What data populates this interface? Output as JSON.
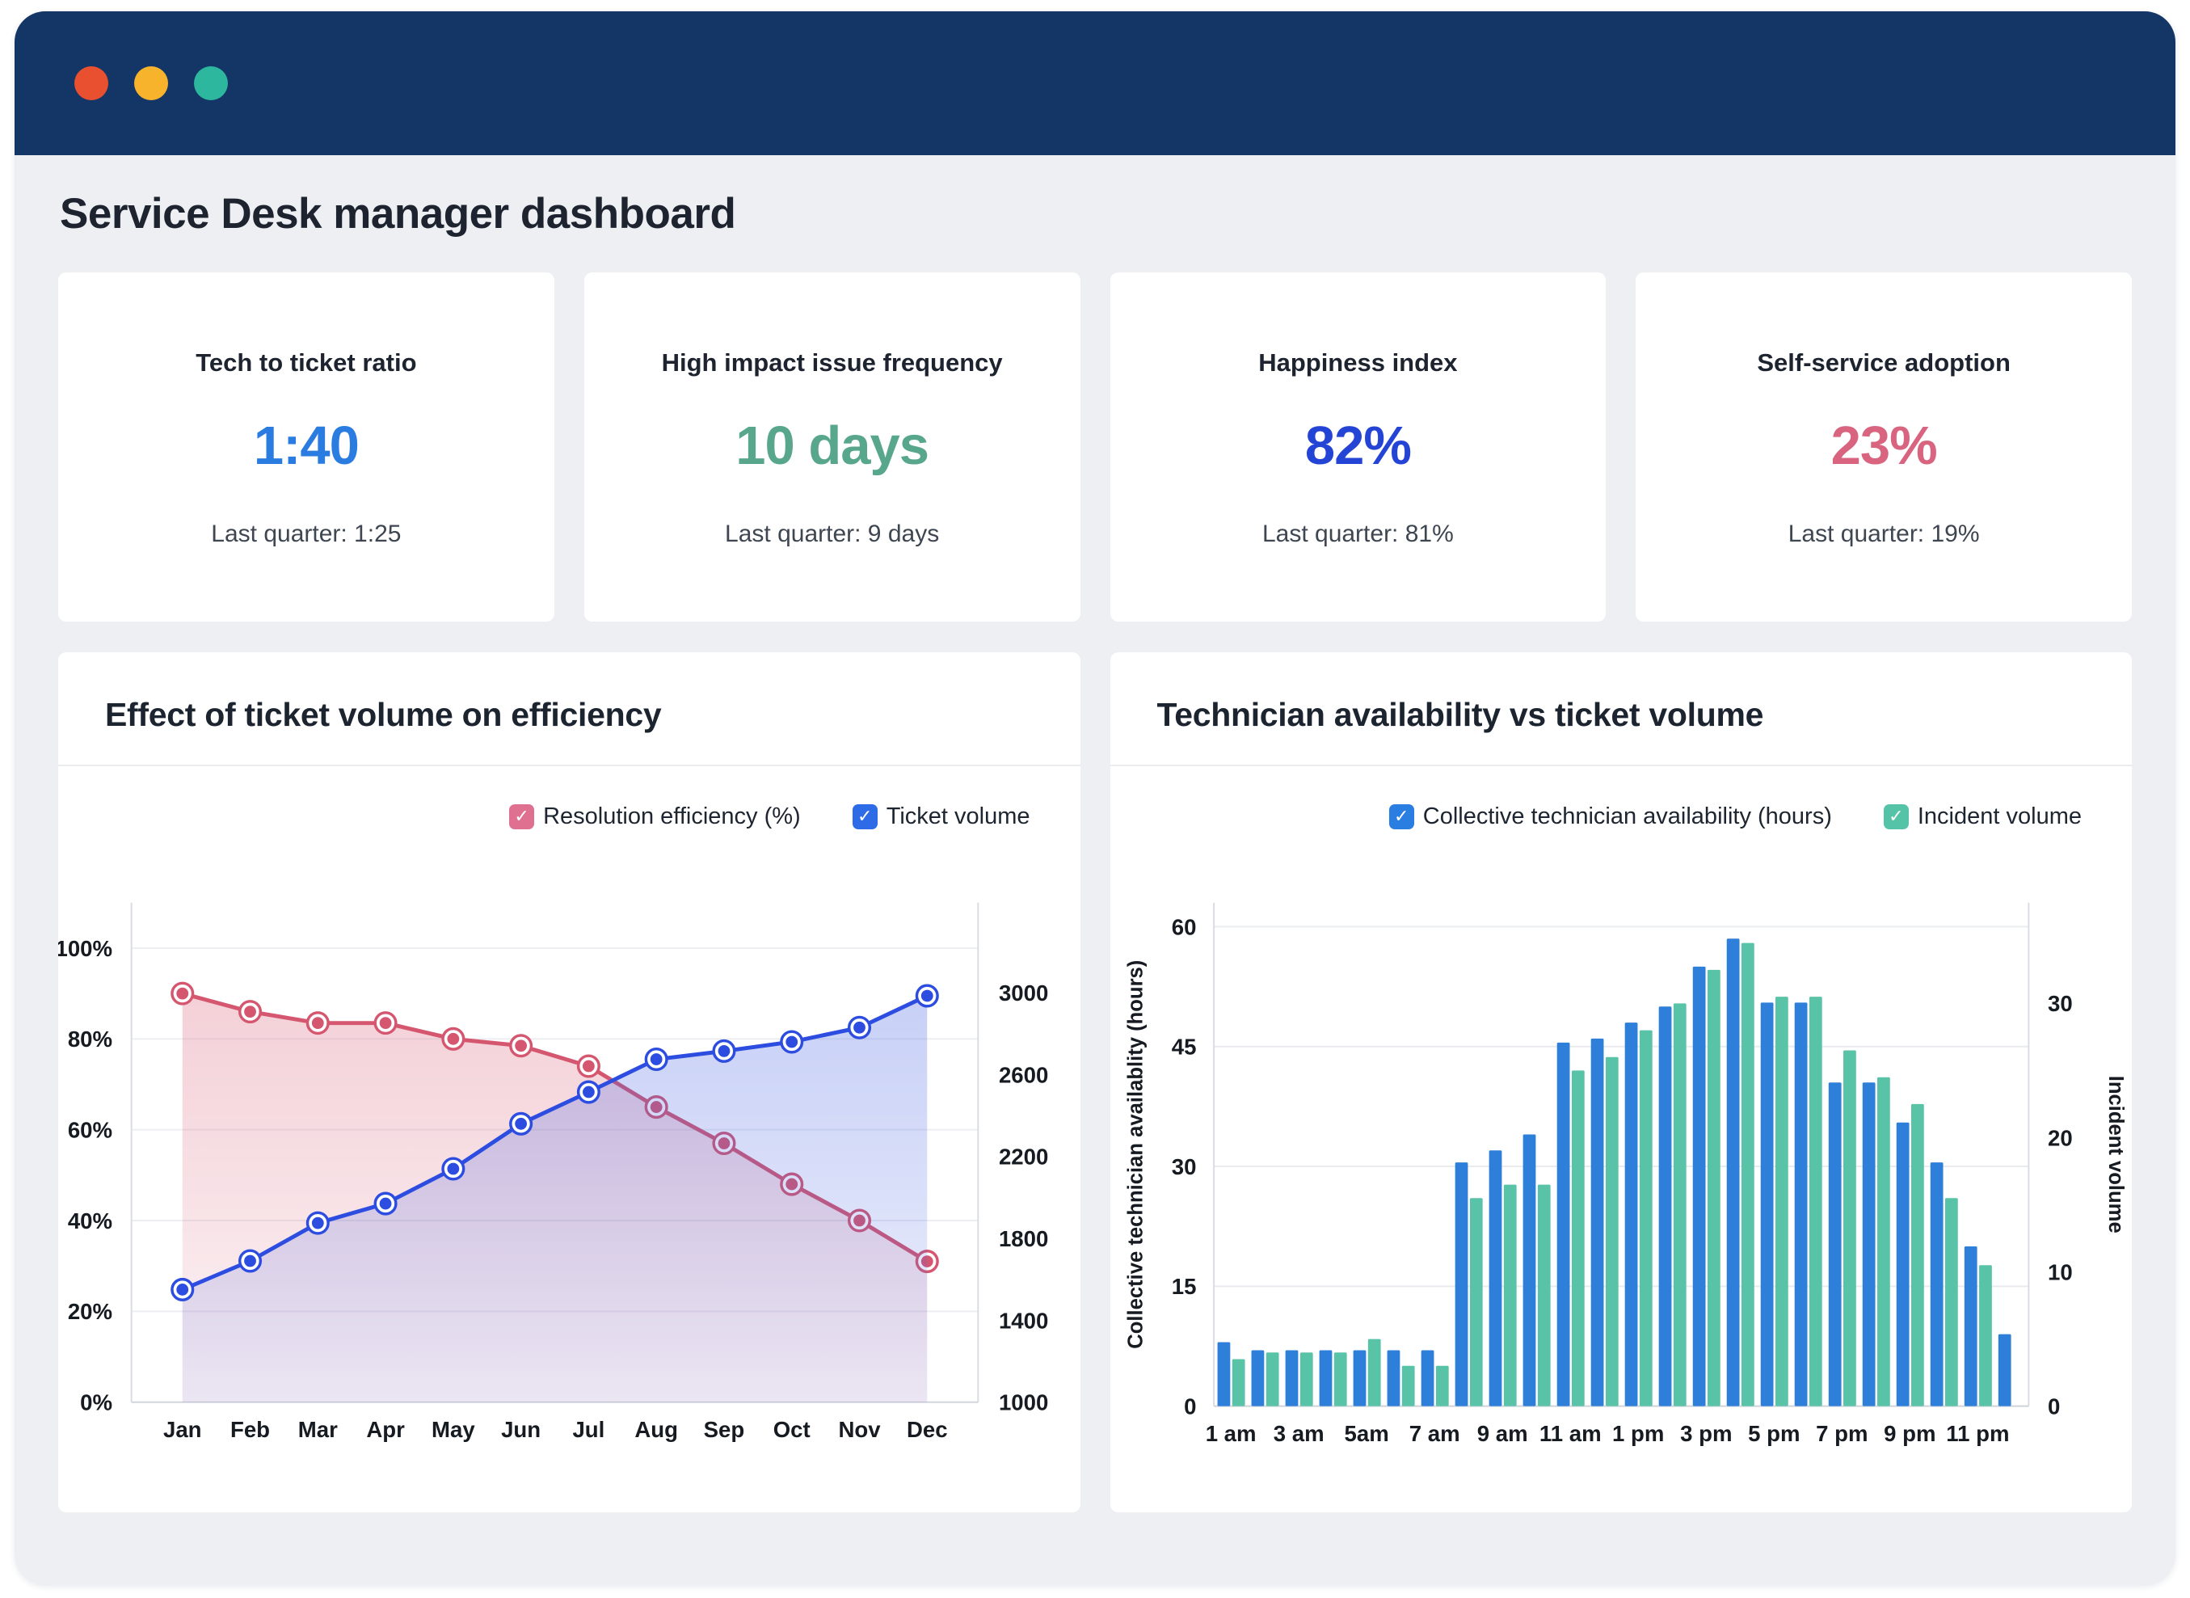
{
  "palette": {
    "titlebar": "#143666",
    "page_background": "#edeff2",
    "card_background": "#ffffff",
    "dot_colors": [
      "#e8502f",
      "#f6b32b",
      "#2cb79e"
    ]
  },
  "check_glyph": "✓",
  "header": {
    "title": "Service Desk manager dashboard"
  },
  "kpis": [
    {
      "label": "Tech to ticket ratio",
      "value": "1:40",
      "color": "#2b7ce0",
      "note": "Last quarter: 1:25"
    },
    {
      "label": "High impact issue frequency",
      "value": "10 days",
      "color": "#58a78d",
      "note": "Last quarter: 9 days"
    },
    {
      "label": "Happiness index",
      "value": "82%",
      "color": "#2444d6",
      "note": "Last quarter: 81%"
    },
    {
      "label": "Self-service adoption",
      "value": "23%",
      "color": "#d96480",
      "note": "Last quarter: 19%"
    }
  ],
  "chart_data": [
    {
      "type": "line",
      "title": "Effect of ticket volume on efficiency",
      "categories": [
        "Jan",
        "Feb",
        "Mar",
        "Apr",
        "May",
        "Jun",
        "Jul",
        "Aug",
        "Sep",
        "Oct",
        "Nov",
        "Dec"
      ],
      "series": [
        {
          "name": "Resolution efficiency (%)",
          "axis": "left",
          "color": "#d5576f",
          "fill_from": "rgba(213,87,111,0.28)",
          "fill_to": "rgba(213,87,111,0.07)",
          "values": [
            90,
            86,
            83.5,
            83.5,
            80,
            78.5,
            74,
            65,
            57,
            48,
            40,
            31
          ]
        },
        {
          "name": "Ticket volume",
          "axis": "right",
          "color": "#2c4de0",
          "fill_from": "rgba(70,98,226,0.30)",
          "fill_to": "rgba(70,98,226,0.09)",
          "values": [
            1550,
            1690,
            1875,
            1970,
            2140,
            2360,
            2515,
            2675,
            2715,
            2760,
            2830,
            2985
          ]
        }
      ],
      "left_axis": {
        "ticks": [
          "0%",
          "20%",
          "40%",
          "60%",
          "80%",
          "100%"
        ],
        "tick_values": [
          0,
          20,
          40,
          60,
          80,
          100
        ],
        "range": [
          0,
          110
        ]
      },
      "right_axis": {
        "ticks": [
          "1000",
          "1400",
          "1800",
          "2200",
          "2600",
          "3000"
        ],
        "tick_values": [
          1000,
          1400,
          1800,
          2200,
          2600,
          3000
        ],
        "range": [
          1000,
          3440
        ]
      },
      "legend": [
        {
          "label": "Resolution efficiency (%)",
          "color": "#df7090"
        },
        {
          "label": "Ticket volume",
          "color": "#2e6be6"
        }
      ]
    },
    {
      "type": "bar",
      "title": "Technician availability vs ticket volume",
      "x_tick_labels": [
        "1 am",
        "3 am",
        "5am",
        "7 am",
        "9 am",
        "11 am",
        "1 pm",
        "3 pm",
        "5 pm",
        "7 pm",
        "9 pm",
        "11 pm"
      ],
      "label_every": 2,
      "series": [
        {
          "name": "Collective technician availability (hours)",
          "axis": "left",
          "color": "#2e7fd9",
          "values": [
            8,
            7,
            7,
            7,
            7,
            7,
            7,
            30.5,
            32,
            34,
            45.5,
            46,
            48,
            50,
            55,
            58.5,
            50.5,
            50.5,
            40.5,
            40.5,
            35.5,
            30.5,
            20,
            9
          ]
        },
        {
          "name": "Incident volume",
          "axis": "right",
          "color": "#59c3a8",
          "values": [
            3.5,
            4,
            4,
            4,
            5,
            3,
            3,
            15.5,
            16.5,
            16.5,
            25,
            26,
            28,
            30,
            32.5,
            34.5,
            30.5,
            30.5,
            26.5,
            24.5,
            22.5,
            15.5,
            10.5,
            null
          ]
        }
      ],
      "left_axis": {
        "label": "Collective technician availablity (hours)",
        "ticks": [
          0,
          15,
          30,
          45,
          60
        ],
        "range": [
          0,
          63
        ]
      },
      "right_axis": {
        "label": "Incident volume",
        "ticks": [
          0,
          10,
          20,
          30
        ],
        "range": [
          0,
          37.5
        ]
      },
      "legend": [
        {
          "label": "Collective technician availability (hours)",
          "color": "#2a7de1"
        },
        {
          "label": "Incident volume",
          "color": "#55c3a7"
        }
      ]
    }
  ]
}
